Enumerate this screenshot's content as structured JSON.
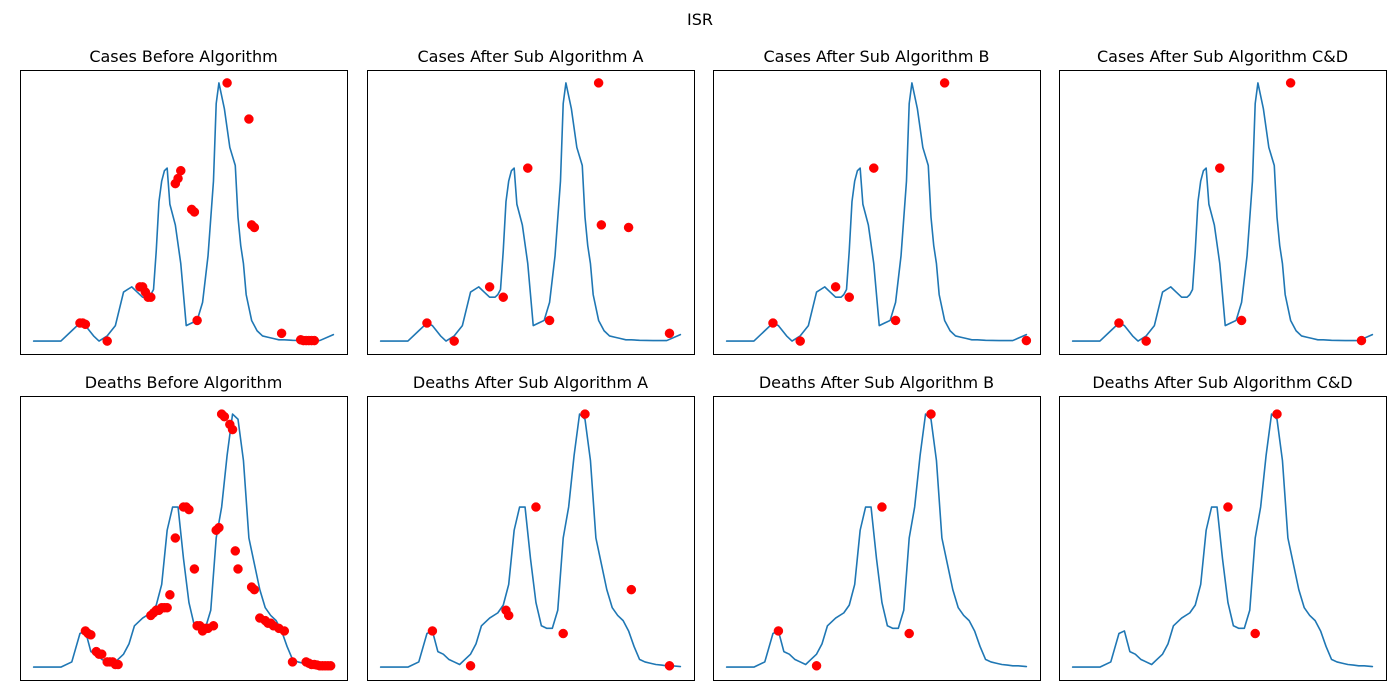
{
  "figure": {
    "title": "ISR"
  },
  "chart_data": [
    {
      "type": "line",
      "title": "Cases Before Algorithm",
      "x": [
        0,
        5,
        10,
        14,
        17,
        19,
        22,
        24,
        27,
        30,
        33,
        36,
        38,
        40,
        42,
        43,
        44,
        45,
        46,
        47,
        48,
        49,
        50,
        52,
        54,
        56,
        58,
        60,
        62,
        64,
        66,
        67,
        68,
        70,
        72,
        74,
        75,
        76,
        77,
        78,
        80,
        82,
        84,
        86,
        88,
        90,
        92,
        95,
        100,
        105,
        110
      ],
      "y": [
        0,
        0,
        0,
        4,
        7,
        6,
        2,
        0,
        2,
        6,
        19,
        21,
        19,
        17,
        17,
        18,
        20,
        35,
        54,
        62,
        66,
        67,
        53,
        45,
        30,
        6,
        7,
        8,
        15,
        33,
        62,
        92,
        100,
        90,
        75,
        68,
        48,
        37,
        30,
        18,
        8,
        4,
        2,
        1.5,
        1,
        0.5,
        0.5,
        0.3,
        0.2,
        0.2,
        2.5
      ],
      "markers_x": [
        17,
        18,
        19,
        27,
        39,
        40,
        41,
        42,
        43,
        52,
        53,
        54,
        58,
        59,
        60,
        71,
        79,
        80,
        81,
        91,
        98,
        99,
        100,
        101,
        102,
        103
      ],
      "markers_y": [
        7,
        7,
        6.5,
        0,
        21,
        21,
        19,
        17,
        17,
        61,
        63,
        66,
        51,
        50,
        8,
        100,
        86,
        45,
        44,
        3,
        0.5,
        0.2,
        0.2,
        0.2,
        0.2,
        0.2
      ],
      "ylim": [
        -5,
        105
      ],
      "xlim": [
        -5,
        115
      ]
    },
    {
      "type": "line",
      "title": "Cases After Sub Algorithm A",
      "x": [
        0,
        5,
        10,
        14,
        17,
        19,
        22,
        24,
        27,
        30,
        33,
        36,
        38,
        40,
        42,
        43,
        44,
        45,
        46,
        47,
        48,
        49,
        50,
        52,
        54,
        56,
        58,
        60,
        62,
        64,
        66,
        67,
        68,
        70,
        72,
        74,
        75,
        76,
        77,
        78,
        80,
        82,
        84,
        86,
        88,
        90,
        92,
        95,
        100,
        105,
        110
      ],
      "y": [
        0,
        0,
        0,
        4,
        7,
        6,
        2,
        0,
        2,
        6,
        19,
        21,
        19,
        17,
        17,
        18,
        20,
        35,
        54,
        62,
        66,
        67,
        53,
        45,
        30,
        6,
        7,
        8,
        15,
        33,
        62,
        92,
        100,
        90,
        75,
        68,
        48,
        37,
        30,
        18,
        8,
        4,
        2,
        1.5,
        1,
        0.5,
        0.5,
        0.3,
        0.2,
        0.2,
        2.5
      ],
      "markers_x": [
        17,
        27,
        40,
        45,
        54,
        62,
        80,
        81,
        91,
        106
      ],
      "markers_y": [
        7,
        0,
        21,
        17,
        67,
        8,
        100,
        45,
        44,
        3
      ],
      "ylim": [
        -5,
        105
      ],
      "xlim": [
        -5,
        115
      ]
    },
    {
      "type": "line",
      "title": "Cases After Sub Algorithm B",
      "x": [
        0,
        5,
        10,
        14,
        17,
        19,
        22,
        24,
        27,
        30,
        33,
        36,
        38,
        40,
        42,
        43,
        44,
        45,
        46,
        47,
        48,
        49,
        50,
        52,
        54,
        56,
        58,
        60,
        62,
        64,
        66,
        67,
        68,
        70,
        72,
        74,
        75,
        76,
        77,
        78,
        80,
        82,
        84,
        86,
        88,
        90,
        92,
        95,
        100,
        105,
        110
      ],
      "y": [
        0,
        0,
        0,
        4,
        7,
        6,
        2,
        0,
        2,
        6,
        19,
        21,
        19,
        17,
        17,
        18,
        20,
        35,
        54,
        62,
        66,
        67,
        53,
        45,
        30,
        6,
        7,
        8,
        15,
        33,
        62,
        92,
        100,
        90,
        75,
        68,
        48,
        37,
        30,
        18,
        8,
        4,
        2,
        1.5,
        1,
        0.5,
        0.5,
        0.3,
        0.2,
        0.2,
        2.5
      ],
      "markers_x": [
        17,
        27,
        40,
        45,
        54,
        62,
        80,
        110
      ],
      "markers_y": [
        7,
        0,
        21,
        17,
        67,
        8,
        100,
        0.2
      ],
      "ylim": [
        -5,
        105
      ],
      "xlim": [
        -5,
        115
      ]
    },
    {
      "type": "line",
      "title": "Cases After Sub Algorithm C&D",
      "x": [
        0,
        5,
        10,
        14,
        17,
        19,
        22,
        24,
        27,
        30,
        33,
        36,
        38,
        40,
        42,
        43,
        44,
        45,
        46,
        47,
        48,
        49,
        50,
        52,
        54,
        56,
        58,
        60,
        62,
        64,
        66,
        67,
        68,
        70,
        72,
        74,
        75,
        76,
        77,
        78,
        80,
        82,
        84,
        86,
        88,
        90,
        92,
        95,
        100,
        105,
        110
      ],
      "y": [
        0,
        0,
        0,
        4,
        7,
        6,
        2,
        0,
        2,
        6,
        19,
        21,
        19,
        17,
        17,
        18,
        20,
        35,
        54,
        62,
        66,
        67,
        53,
        45,
        30,
        6,
        7,
        8,
        15,
        33,
        62,
        92,
        100,
        90,
        75,
        68,
        48,
        37,
        30,
        18,
        8,
        4,
        2,
        1.5,
        1,
        0.5,
        0.5,
        0.3,
        0.2,
        0.2,
        2.5
      ],
      "markers_x": [
        17,
        27,
        54,
        62,
        80,
        106
      ],
      "markers_y": [
        7,
        0,
        67,
        8,
        100,
        0.2
      ],
      "ylim": [
        -5,
        105
      ],
      "xlim": [
        -5,
        115
      ]
    },
    {
      "type": "line",
      "title": "Deaths Before Algorithm",
      "x": [
        0,
        5,
        10,
        14,
        17,
        19,
        21,
        23,
        25,
        27,
        29,
        31,
        33,
        35,
        37,
        40,
        43,
        45,
        47,
        49,
        51,
        53,
        55,
        57,
        59,
        61,
        63,
        65,
        67,
        69,
        71,
        73,
        75,
        77,
        79,
        81,
        83,
        85,
        87,
        89,
        91,
        93,
        95,
        97,
        99,
        101,
        103,
        105,
        107,
        110
      ],
      "y": [
        0,
        0,
        0,
        2,
        13,
        14,
        6,
        5,
        3,
        2,
        1,
        3,
        5,
        9,
        16,
        19,
        21,
        24,
        32,
        53,
        62,
        62,
        42,
        25,
        16,
        15,
        15,
        22,
        50,
        62,
        82,
        98,
        96,
        80,
        50,
        40,
        30,
        23,
        20,
        18,
        14,
        8,
        3,
        2,
        1.5,
        1,
        0.8,
        0.5,
        0.5,
        0.2
      ],
      "markers_x": [
        19,
        20,
        21,
        23,
        24,
        25,
        27,
        28,
        29,
        30,
        31,
        43,
        44,
        45,
        46,
        47,
        48,
        49,
        50,
        52,
        55,
        56,
        57,
        59,
        60,
        61,
        62,
        63,
        64,
        66,
        67,
        68,
        69,
        70,
        72,
        73,
        74,
        75,
        80,
        81,
        83,
        85,
        86,
        87,
        88,
        90,
        92,
        95,
        100,
        101,
        102,
        103,
        104,
        105,
        106,
        107,
        108,
        109
      ],
      "markers_y": [
        14,
        13,
        12.5,
        6,
        5,
        5,
        2,
        2,
        2,
        1,
        1,
        20,
        21,
        22,
        22,
        23,
        23,
        23,
        28,
        50,
        62,
        62,
        61,
        38,
        16,
        16,
        14,
        15,
        15,
        16,
        53,
        54,
        98,
        97,
        94,
        92,
        45,
        38,
        31,
        30,
        19,
        18,
        17,
        17,
        16,
        15,
        14,
        2,
        2,
        1.5,
        1,
        1,
        0.8,
        0.5,
        0.5,
        0.5,
        0.5,
        0.5
      ],
      "ylim": [
        -5,
        105
      ],
      "xlim": [
        -5,
        115
      ]
    },
    {
      "type": "line",
      "title": "Deaths After Sub Algorithm A",
      "x": [
        0,
        5,
        10,
        14,
        17,
        19,
        21,
        23,
        25,
        27,
        29,
        31,
        33,
        35,
        37,
        40,
        43,
        45,
        47,
        49,
        51,
        53,
        55,
        57,
        59,
        61,
        63,
        65,
        67,
        69,
        71,
        73,
        75,
        77,
        79,
        81,
        83,
        85,
        87,
        89,
        91,
        93,
        95,
        97,
        99,
        101,
        103,
        105,
        107,
        110
      ],
      "y": [
        0,
        0,
        0,
        2,
        13,
        14,
        6,
        5,
        3,
        2,
        1,
        3,
        5,
        9,
        16,
        19,
        21,
        24,
        32,
        53,
        62,
        62,
        42,
        25,
        16,
        15,
        15,
        22,
        50,
        62,
        82,
        98,
        96,
        80,
        50,
        40,
        30,
        23,
        20,
        18,
        14,
        8,
        3,
        2,
        1.5,
        1,
        0.8,
        0.5,
        0.5,
        0.2
      ],
      "markers_x": [
        19,
        33,
        46,
        47,
        57,
        67,
        75,
        92,
        106
      ],
      "markers_y": [
        14,
        0.5,
        22,
        20,
        62,
        13,
        98,
        30,
        0.5
      ],
      "ylim": [
        -5,
        105
      ],
      "xlim": [
        -5,
        115
      ]
    },
    {
      "type": "line",
      "title": "Deaths After Sub Algorithm B",
      "x": [
        0,
        5,
        10,
        14,
        17,
        19,
        21,
        23,
        25,
        27,
        29,
        31,
        33,
        35,
        37,
        40,
        43,
        45,
        47,
        49,
        51,
        53,
        55,
        57,
        59,
        61,
        63,
        65,
        67,
        69,
        71,
        73,
        75,
        77,
        79,
        81,
        83,
        85,
        87,
        89,
        91,
        93,
        95,
        97,
        99,
        101,
        103,
        105,
        107,
        110
      ],
      "y": [
        0,
        0,
        0,
        2,
        13,
        14,
        6,
        5,
        3,
        2,
        1,
        3,
        5,
        9,
        16,
        19,
        21,
        24,
        32,
        53,
        62,
        62,
        42,
        25,
        16,
        15,
        15,
        22,
        50,
        62,
        82,
        98,
        96,
        80,
        50,
        40,
        30,
        23,
        20,
        18,
        14,
        8,
        3,
        2,
        1.5,
        1,
        0.8,
        0.5,
        0.5,
        0.2
      ],
      "markers_x": [
        19,
        33,
        57,
        67,
        75
      ],
      "markers_y": [
        14,
        0.5,
        62,
        13,
        98
      ],
      "ylim": [
        -5,
        105
      ],
      "xlim": [
        -5,
        115
      ]
    },
    {
      "type": "line",
      "title": "Deaths After Sub Algorithm C&D",
      "x": [
        0,
        5,
        10,
        14,
        17,
        19,
        21,
        23,
        25,
        27,
        29,
        31,
        33,
        35,
        37,
        40,
        43,
        45,
        47,
        49,
        51,
        53,
        55,
        57,
        59,
        61,
        63,
        65,
        67,
        69,
        71,
        73,
        75,
        77,
        79,
        81,
        83,
        85,
        87,
        89,
        91,
        93,
        95,
        97,
        99,
        101,
        103,
        105,
        107,
        110
      ],
      "y": [
        0,
        0,
        0,
        2,
        13,
        14,
        6,
        5,
        3,
        2,
        1,
        3,
        5,
        9,
        16,
        19,
        21,
        24,
        32,
        53,
        62,
        62,
        42,
        25,
        16,
        15,
        15,
        22,
        50,
        62,
        82,
        98,
        96,
        80,
        50,
        40,
        30,
        23,
        20,
        18,
        14,
        8,
        3,
        2,
        1.5,
        1,
        0.8,
        0.5,
        0.5,
        0.2
      ],
      "markers_x": [
        57,
        67,
        75
      ],
      "markers_y": [
        62,
        13,
        98
      ],
      "ylim": [
        -5,
        105
      ],
      "xlim": [
        -5,
        115
      ]
    }
  ],
  "colors": {
    "line": "#1f77b4",
    "marker": "#ff0000"
  }
}
